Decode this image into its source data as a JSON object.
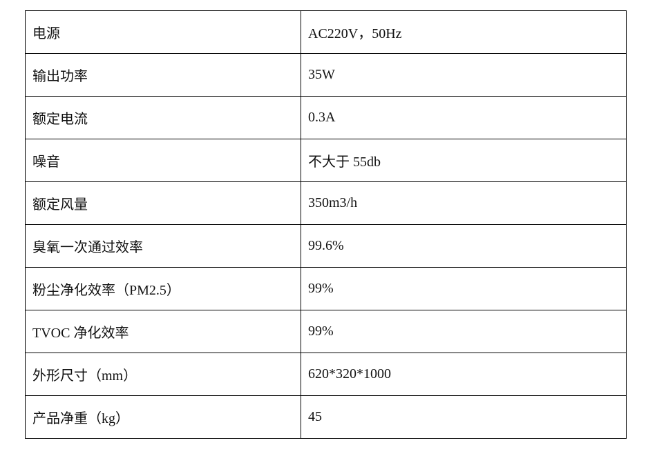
{
  "table": {
    "rows": [
      [
        "电源",
        "AC220V，50Hz"
      ],
      [
        "输出功率",
        "35W"
      ],
      [
        "额定电流",
        "0.3A"
      ],
      [
        "噪音",
        "不大于 55db"
      ],
      [
        "额定风量",
        "350m3/h"
      ],
      [
        "臭氧一次通过效率",
        "99.6%"
      ],
      [
        "粉尘净化效率（PM2.5）",
        "99%"
      ],
      [
        "TVOC 净化效率",
        "99%"
      ],
      [
        "外形尺寸（mm）",
        "620*320*1000"
      ],
      [
        "产品净重（kg）",
        "45"
      ]
    ]
  }
}
